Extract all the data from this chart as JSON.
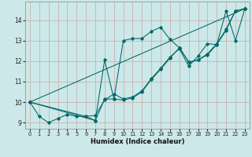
{
  "xlabel": "Humidex (Indice chaleur)",
  "bg_color": "#cce8e8",
  "line_color": "#006868",
  "grid_color": "#c8a8a8",
  "xlim": [
    -0.5,
    23.5
  ],
  "ylim": [
    8.7,
    14.9
  ],
  "lines": [
    {
      "x": [
        0,
        1,
        2,
        3,
        4,
        5,
        6,
        7,
        8,
        9,
        10,
        11,
        12,
        13,
        14,
        15,
        16,
        17,
        18,
        19,
        20,
        21,
        22,
        23
      ],
      "y": [
        10.0,
        9.3,
        9.0,
        9.2,
        9.4,
        9.3,
        9.3,
        9.1,
        12.05,
        10.15,
        13.0,
        13.1,
        13.1,
        13.45,
        13.65,
        13.05,
        12.65,
        11.95,
        12.05,
        12.3,
        12.8,
        14.45,
        13.0,
        14.55
      ]
    },
    {
      "x": [
        0,
        7,
        8,
        9,
        10,
        11,
        12,
        13,
        14,
        15,
        16,
        17,
        18,
        19,
        20,
        21,
        22,
        23
      ],
      "y": [
        10.0,
        9.1,
        10.15,
        10.15,
        10.1,
        10.2,
        10.5,
        11.1,
        11.6,
        12.15,
        12.65,
        11.95,
        12.05,
        12.35,
        12.85,
        13.55,
        14.45,
        14.55
      ]
    },
    {
      "x": [
        0,
        23
      ],
      "y": [
        10.0,
        14.55
      ]
    },
    {
      "x": [
        0,
        6,
        7,
        8,
        9,
        10,
        11,
        12,
        13,
        14,
        15,
        16,
        17,
        18,
        19,
        20,
        21,
        22,
        23
      ],
      "y": [
        10.0,
        9.3,
        9.35,
        10.1,
        10.4,
        10.15,
        10.25,
        10.55,
        11.15,
        11.65,
        12.2,
        12.6,
        11.75,
        12.25,
        12.85,
        12.8,
        13.5,
        14.45,
        14.55
      ]
    }
  ],
  "yticks": [
    9,
    10,
    11,
    12,
    13,
    14
  ],
  "xticks": [
    0,
    1,
    2,
    3,
    4,
    5,
    6,
    7,
    8,
    9,
    10,
    11,
    12,
    13,
    14,
    15,
    16,
    17,
    18,
    19,
    20,
    21,
    22,
    23
  ]
}
